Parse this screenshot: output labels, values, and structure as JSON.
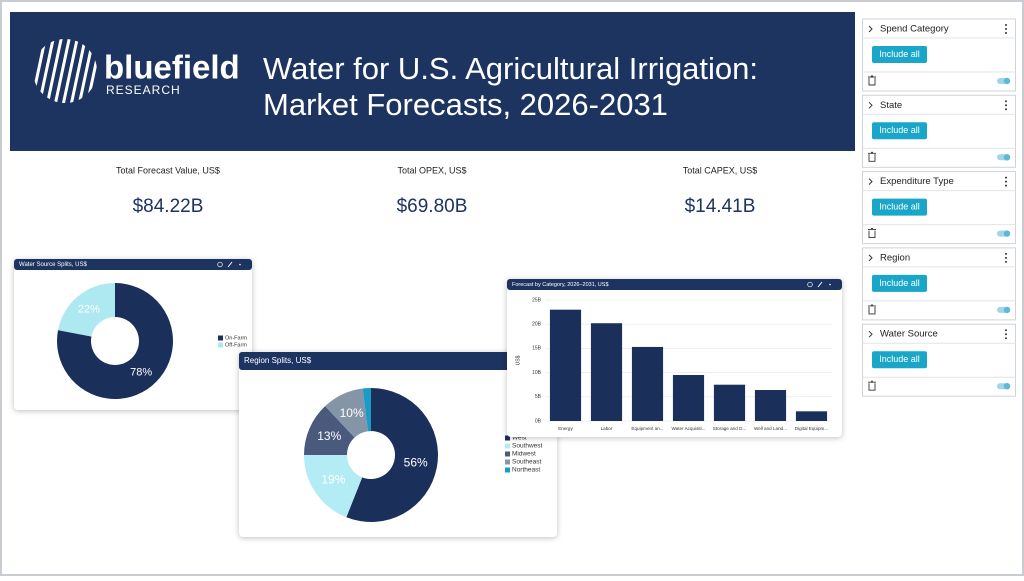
{
  "header": {
    "brand": "bluefield",
    "brand_sub": "RESEARCH",
    "title_lines": [
      "Water for U.S. Agricultural Irrigation:",
      "Market Forecasts, 2026-2031"
    ]
  },
  "kpis": [
    {
      "label": "Total Forecast Value, US$",
      "value": "$84.22B"
    },
    {
      "label": "Total OPEX, US$",
      "value": "$69.80B"
    },
    {
      "label": "Total CAPEX, US$",
      "value": "$14.41B"
    }
  ],
  "charts": [
    {
      "type": "donut",
      "title": "Water Source Splits, US$",
      "categories": [
        "On-Farm",
        "Off-Farm"
      ],
      "values": [
        78,
        22
      ],
      "value_labels": [
        "78%",
        "22%"
      ],
      "colors": [
        "#1b2f5b",
        "#aee8f0"
      ]
    },
    {
      "type": "donut",
      "title": "Region Splits, US$",
      "categories": [
        "West",
        "Southwest",
        "Midwest",
        "Southeast",
        "Northeast"
      ],
      "values": [
        56,
        19,
        13,
        10,
        2
      ],
      "value_labels": [
        "56%",
        "19%",
        "13%",
        "10%",
        null
      ],
      "colors": [
        "#1b2f5b",
        "#b3ecf4",
        "#4a5a7c",
        "#8595a8",
        "#1a9cc4"
      ]
    },
    {
      "type": "bar",
      "title": "Forecast by Category, 2026–2031, US$",
      "y_label": "US$",
      "categories": [
        "Energy",
        "Labor",
        "Equipment an...",
        "Water Acquisiti...",
        "Storage and D...",
        "Well and Land...",
        "Digital Equipm..."
      ],
      "values": [
        23,
        20.2,
        15.3,
        9.5,
        7.5,
        6.4,
        2
      ],
      "color": "#1b2f5b",
      "ylim": [
        0,
        25
      ],
      "yticks": [
        {
          "value": 0,
          "label": "0B"
        },
        {
          "value": 5,
          "label": "5B"
        },
        {
          "value": 10,
          "label": "10B"
        },
        {
          "value": 15,
          "label": "15B"
        },
        {
          "value": 20,
          "label": "20B"
        },
        {
          "value": 25,
          "label": "25B"
        }
      ],
      "grid": true
    }
  ],
  "filters": [
    {
      "name": "Spend Category",
      "button": "Include all"
    },
    {
      "name": "State",
      "button": "Include all"
    },
    {
      "name": "Expenditure Type",
      "button": "Include all"
    },
    {
      "name": "Region",
      "button": "Include all"
    },
    {
      "name": "Water Source",
      "button": "Include all"
    }
  ]
}
